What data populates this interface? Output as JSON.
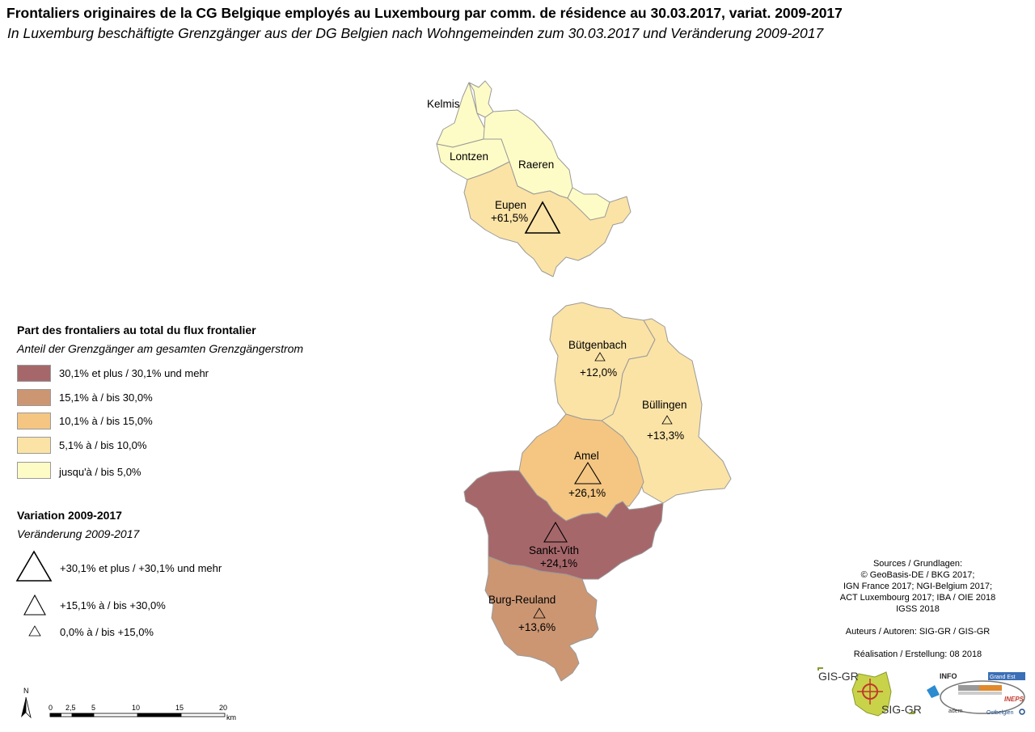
{
  "title": {
    "fr": "Frontaliers originaires de la CG Belgique employés au Luxembourg par comm. de résidence au 30.03.2017, variat. 2009-2017",
    "de": "In Luxemburg beschäftigte Grenzgänger aus der DG Belgien nach Wohngemeinden zum 30.03.2017 und Veränderung 2009-2017"
  },
  "communes": [
    {
      "name": "Kelmis",
      "share_class": "jusqu'à / bis 5,0%",
      "color": "#fefcc6",
      "variation": ""
    },
    {
      "name": "Lontzen",
      "share_class": "jusqu'à / bis 5,0%",
      "color": "#fefcc6",
      "variation": ""
    },
    {
      "name": "Raeren",
      "share_class": "jusqu'à / bis 5,0%",
      "color": "#fefcc6",
      "variation": ""
    },
    {
      "name": "Eupen",
      "share_class": "5,1% à / bis 10,0%",
      "color": "#fbe3a6",
      "variation": "+61,5%"
    },
    {
      "name": "Bütgenbach",
      "share_class": "5,1% à / bis 10,0%",
      "color": "#fbe3a6",
      "variation": "+12,0%"
    },
    {
      "name": "Büllingen",
      "share_class": "5,1% à / bis 10,0%",
      "color": "#fbe3a6",
      "variation": "+13,3%"
    },
    {
      "name": "Amel",
      "share_class": "10,1% à / bis 15,0%",
      "color": "#f4c682",
      "variation": "+26,1%"
    },
    {
      "name": "Sankt-Vith",
      "share_class": "30,1% et plus / 30,1% und mehr",
      "color": "#a6676a",
      "variation": "+24,1%"
    },
    {
      "name": "Burg-Reuland",
      "share_class": "15,1% à / bis 30,0%",
      "color": "#cc9673",
      "variation": "+13,6%"
    }
  ],
  "legend_share": {
    "title": "Part des frontaliers au total du flux frontalier",
    "subtitle": "Anteil der Grenzgänger am gesamten Grenzgängerstrom",
    "classes": [
      {
        "label": "30,1% et plus / 30,1% und mehr",
        "color": "#a6676a"
      },
      {
        "label": "15,1% à / bis 30,0%",
        "color": "#cc9673"
      },
      {
        "label": "10,1% à / bis 15,0%",
        "color": "#f4c682"
      },
      {
        "label": "5,1% à / bis 10,0%",
        "color": "#fbe3a6"
      },
      {
        "label": "jusqu'à / bis 5,0%",
        "color": "#fefcc6"
      }
    ]
  },
  "legend_variation": {
    "title": "Variation 2009-2017",
    "subtitle": "Veränderung 2009-2017",
    "classes": [
      {
        "label": "+30,1% et plus / +30,1% und mehr",
        "symbol": "large-triangle"
      },
      {
        "label": "+15,1% à / bis +30,0%",
        "symbol": "medium-triangle"
      },
      {
        "label": "0,0% à / bis +15,0%",
        "symbol": "small-triangle"
      }
    ]
  },
  "sources": {
    "lines": [
      "Sources / Grundlagen:",
      "© GeoBasis-DE / BKG 2017;",
      "IGN France 2017; NGI-Belgium 2017;",
      "ACT Luxembourg 2017; IBA / OIE 2018",
      "IGSS 2018"
    ],
    "authors": "Auteurs / Autoren: SIG-GR / GIS-GR",
    "realisation": "Réalisation / Erstellung: 08 2018"
  },
  "scale": {
    "north": "N",
    "ticks": [
      "0",
      "2,5",
      "5",
      "10",
      "15",
      "20"
    ],
    "unit": "km"
  },
  "logos": {
    "gis_top": "GIS-GR",
    "sig_bottom": "SIG-GR",
    "info": "INFO",
    "grandest": "Grand Est",
    "adem": "adem",
    "ineps": "INEPS",
    "ostbelgien": "Ostbelgien"
  }
}
